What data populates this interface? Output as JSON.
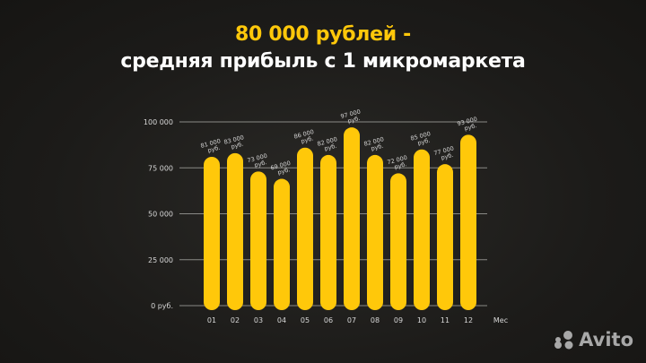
{
  "title_line1": "80 000 рублей -",
  "title_line2": "средняя прибыль с 1 микромаркета",
  "logo_text": "Avito",
  "colors": {
    "bar": "#ffc80a",
    "title_accent": "#ffc80a",
    "grid": "#8a8a86",
    "text": "#d8d8d8"
  },
  "chart_data": {
    "type": "bar",
    "categories": [
      "01",
      "02",
      "03",
      "04",
      "05",
      "06",
      "07",
      "08",
      "09",
      "10",
      "11",
      "12"
    ],
    "values": [
      81000,
      83000,
      73000,
      69000,
      86000,
      82000,
      97000,
      82000,
      72000,
      85000,
      77000,
      93000
    ],
    "data_labels": [
      "81 000 руб.",
      "83 000 руб.",
      "73 000 руб.",
      "69 000 руб.",
      "86 000 руб.",
      "82 000 руб.",
      "97 000 руб.",
      "82 000 руб.",
      "72 000 руб.",
      "85 000 руб.",
      "77 000 руб.",
      "93 000 руб."
    ],
    "xlabel": "Мес",
    "ylim": [
      0,
      100000
    ],
    "yticks": [
      0,
      25000,
      50000,
      75000,
      100000
    ],
    "ytick_labels": [
      "0 руб.",
      "25 000",
      "50 000",
      "75 000",
      "100 000"
    ],
    "grid": true
  }
}
